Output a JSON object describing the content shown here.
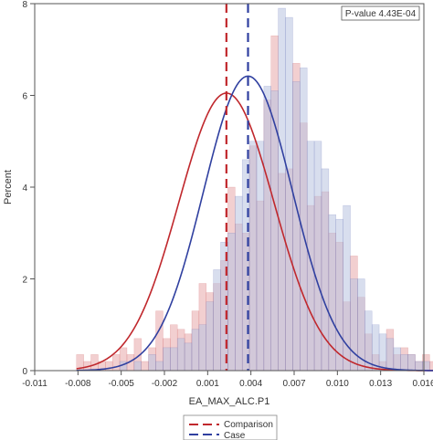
{
  "chart_data": {
    "type": "histogram",
    "xlabel": "EA_MAX_ALC.P1",
    "ylabel": "Percent",
    "xlim": [
      -0.011,
      0.016
    ],
    "ylim": [
      0,
      8
    ],
    "x_ticks": [
      -0.011,
      -0.008,
      -0.005,
      -0.002,
      0.001,
      0.004,
      0.007,
      0.01,
      0.013,
      0.016
    ],
    "x_tick_labels": [
      "-0.011",
      "-0.008",
      "-0.005",
      "-0.002",
      "0.001",
      "0.004",
      "0.007",
      "0.010",
      "0.013",
      "0.016"
    ],
    "y_ticks": [
      0,
      2,
      4,
      6,
      8
    ],
    "y_tick_labels": [
      "0",
      "2",
      "4",
      "6",
      "8"
    ],
    "annotation": "P-value 4.43E-04",
    "bin_start": -0.0081,
    "bin_width": 0.0005,
    "grid": false,
    "legend_position": "bottom",
    "series": [
      {
        "name": "Comparison",
        "color": "#c0282d",
        "fill": "#e8a8aa",
        "line_style": "dashed",
        "mean": 0.0023,
        "sd": 0.0033,
        "normal_curve_peak": 6.05,
        "percents": [
          0.35,
          0.2,
          0.35,
          0.2,
          0.2,
          0.35,
          0.5,
          0.35,
          0.7,
          0.2,
          0.5,
          1.3,
          0.7,
          1.0,
          0.9,
          0.8,
          1.3,
          1.9,
          1.7,
          1.9,
          2.4,
          4.0,
          3.2,
          3.0,
          4.9,
          3.7,
          5.9,
          7.3,
          4.3,
          4.4,
          6.7,
          5.4,
          3.6,
          3.8,
          3.9,
          3.0,
          2.8,
          1.5,
          2.5,
          1.6,
          0.8,
          0.35,
          0.2,
          0.9,
          0.35,
          0.5,
          0.35,
          0.2,
          0.35,
          0.2
        ]
      },
      {
        "name": "Case",
        "color": "#3040a0",
        "fill": "#b8c2e0",
        "line_style": "dashed",
        "mean": 0.0038,
        "sd": 0.0031,
        "normal_curve_peak": 6.42,
        "percents": [
          0,
          0,
          0,
          0,
          0,
          0,
          0.2,
          0,
          0.2,
          0,
          0.35,
          0.2,
          0.5,
          0.5,
          0.7,
          0.6,
          0.9,
          1.0,
          1.5,
          2.2,
          2.8,
          3.0,
          3.8,
          4.6,
          5.0,
          5.0,
          6.2,
          6.1,
          7.9,
          7.7,
          6.3,
          6.6,
          5.0,
          5.0,
          4.4,
          3.4,
          3.3,
          3.6,
          2.0,
          2.0,
          1.3,
          1.0,
          0.8,
          0.7,
          0.5,
          0.35,
          0.35,
          0.2,
          0.2,
          0
        ]
      }
    ]
  }
}
